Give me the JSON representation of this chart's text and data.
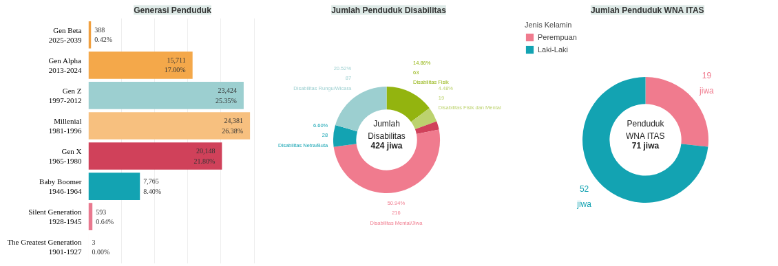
{
  "chart_data": [
    {
      "type": "bar",
      "title": "Generasi Penduduk",
      "orientation": "horizontal",
      "categories": [
        "Gen Beta\n2025-2039",
        "Gen Alpha\n2013-2024",
        "Gen Z\n1997-2012",
        "Millenial\n1981-1996",
        "Gen X\n1965-1980",
        "Baby Boomer\n1946-1964",
        "Silent Generation\n1928-1945",
        "The Greatest Generation\n1901-1927"
      ],
      "values": [
        388,
        15711,
        23424,
        24381,
        20148,
        7765,
        593,
        3
      ],
      "colors": [
        "#f0a040",
        "#f4a84a",
        "#9ccfd0",
        "#f7c07f",
        "#d0415a",
        "#13a3b2",
        "#e9798f",
        "#e9798f"
      ],
      "value_labels": [
        "388\n0.42%",
        "15,711\n17.00%",
        "23,424\n25.35%",
        "24,381\n26.38%",
        "20,148\n21.80%",
        "7,765\n8.40%",
        "593\n0.64%",
        "3\n0.00%"
      ],
      "grid": "x",
      "tick_labels": "y"
    },
    {
      "type": "donut",
      "title": "Jumlah Penduduk Disabilitas",
      "categories": [
        "Disabilitas Fisik",
        "Disabilitas Fisik dan Mental",
        null,
        "Disabilitas Mental/Jiwa",
        "Disabilitas Netra/Buta",
        "Disabilitas Rungu/Wicara"
      ],
      "values": [
        63,
        19,
        11,
        216,
        28,
        87
      ],
      "colors": [
        "#93b40f",
        "#bcd26e",
        "#d0415a",
        "#f07b8e",
        "#13a3b2",
        "#9ccfd0"
      ],
      "value_labels": [
        "14.86%\n63",
        "4.48%\n19",
        null,
        "50.94%\n216",
        "6.60%\n28",
        "20.52%\n87"
      ],
      "annotations": [
        "Jumlah\nDisabilitas",
        "424 jiwa"
      ]
    },
    {
      "type": "donut",
      "title": "Jumlah Penduduk WNA ITAS",
      "categories": [
        "Perempuan",
        "Laki-Laki"
      ],
      "values": [
        19,
        52
      ],
      "colors": [
        "#f07b8e",
        "#13a3b2"
      ],
      "value_labels": [
        "19\njiwa",
        "52\njiwa"
      ],
      "legend": "top left",
      "legend_title": "Jenis Kelamin",
      "annotations": [
        "Penduduk\nWNA ITAS",
        "71 jiwa"
      ]
    }
  ]
}
